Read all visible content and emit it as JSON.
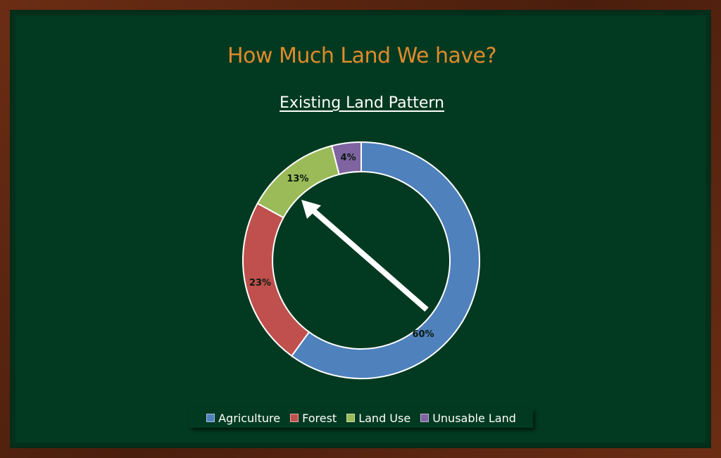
{
  "title": "How Much Land We have?",
  "chart_data": {
    "type": "pie",
    "title": "Existing Land Pattern",
    "categories": [
      "Agriculture",
      "Forest",
      "Land Use",
      "Unusable Land"
    ],
    "values": [
      60,
      23,
      13,
      4
    ],
    "labels": [
      "60%",
      "23%",
      "13%",
      "4%"
    ],
    "colors": [
      "#4f81bd",
      "#c0504d",
      "#9bbb59",
      "#8064a2"
    ],
    "legend_position": "bottom",
    "style": "donut",
    "annotation": "arrow pointing to Land Use segment"
  }
}
